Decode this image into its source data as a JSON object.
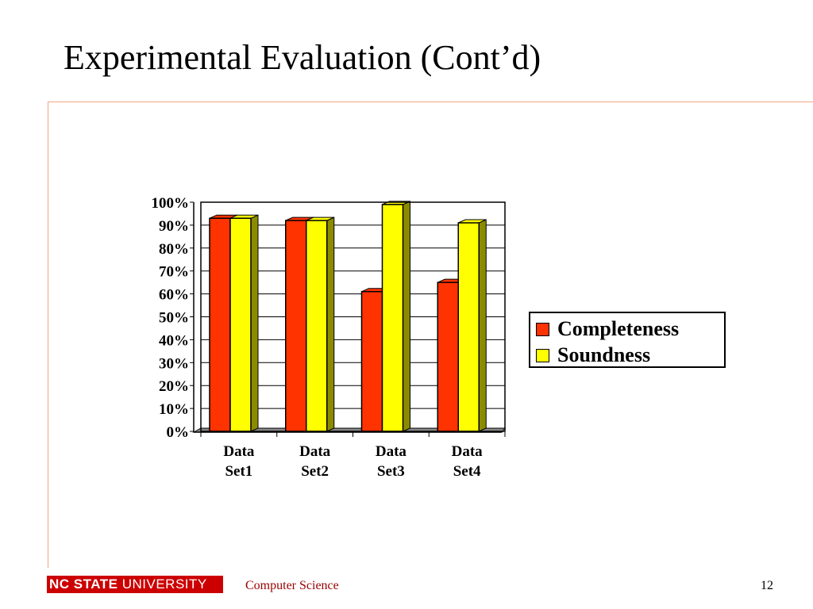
{
  "slide": {
    "title": "Experimental Evaluation (Cont’d)",
    "rule_color": "#f4a582"
  },
  "chart_data": {
    "type": "bar",
    "style": "3d-clustered",
    "categories": [
      "Data Set1",
      "Data Set2",
      "Data Set3",
      "Data Set4"
    ],
    "category_lines": [
      [
        "Data",
        "Set1"
      ],
      [
        "Data",
        "Set2"
      ],
      [
        "Data",
        "Set3"
      ],
      [
        "Data",
        "Set4"
      ]
    ],
    "series": [
      {
        "name": "Completeness",
        "values": [
          93,
          92,
          61,
          65
        ],
        "color": "#ff3300",
        "side_color": "#8b1a00"
      },
      {
        "name": "Soundness",
        "values": [
          93,
          92,
          99,
          91
        ],
        "color": "#ffff00",
        "side_color": "#8b8b00"
      }
    ],
    "ylim": [
      0,
      100
    ],
    "ytick_values": [
      0,
      10,
      20,
      30,
      40,
      50,
      60,
      70,
      80,
      90,
      100
    ],
    "ytick_labels": [
      "0%",
      "10%",
      "20%",
      "30%",
      "40%",
      "50%",
      "60%",
      "70%",
      "80%",
      "90%",
      "100%"
    ],
    "grid": true,
    "legend_position": "right",
    "title": "",
    "xlabel": "",
    "ylabel": ""
  },
  "footer": {
    "logo_text_bold": "NC STATE",
    "logo_text_light": " UNIVERSITY",
    "logo_color": "#cc0000",
    "department": "Computer Science",
    "department_color": "#990000",
    "page_number": "12"
  }
}
